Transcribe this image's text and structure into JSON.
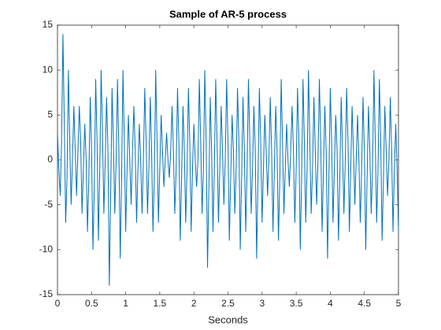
{
  "chart_data": {
    "type": "line",
    "title": "Sample of AR-5 process",
    "xlabel": "Seconds",
    "color": "#0072bd",
    "xlim": [
      0,
      5
    ],
    "ylim": [
      -15,
      15
    ],
    "xticks": [
      0,
      0.5,
      1,
      1.5,
      2,
      2.5,
      3,
      3.5,
      4,
      4.5,
      5
    ],
    "yticks": [
      -15,
      -10,
      -5,
      0,
      5,
      10,
      15
    ],
    "x": [
      0,
      0.02,
      0.04,
      0.06,
      0.08,
      0.1,
      0.12,
      0.14,
      0.16,
      0.18,
      0.2,
      0.22,
      0.24,
      0.26,
      0.28,
      0.3,
      0.32,
      0.34,
      0.36,
      0.38,
      0.4,
      0.42,
      0.44,
      0.46,
      0.48,
      0.5,
      0.52,
      0.54,
      0.56,
      0.58,
      0.6,
      0.62,
      0.64,
      0.66,
      0.68,
      0.7,
      0.72,
      0.74,
      0.76,
      0.78,
      0.8,
      0.82,
      0.84,
      0.86,
      0.88,
      0.9,
      0.92,
      0.94,
      0.96,
      0.98,
      1,
      1.02,
      1.04,
      1.06,
      1.08,
      1.1,
      1.12,
      1.14,
      1.16,
      1.18,
      1.2,
      1.22,
      1.24,
      1.26,
      1.28,
      1.3,
      1.32,
      1.34,
      1.36,
      1.38,
      1.4,
      1.42,
      1.44,
      1.46,
      1.48,
      1.5,
      1.52,
      1.54,
      1.56,
      1.58,
      1.6,
      1.62,
      1.64,
      1.66,
      1.68,
      1.7,
      1.72,
      1.74,
      1.76,
      1.78,
      1.8,
      1.82,
      1.84,
      1.86,
      1.88,
      1.9,
      1.92,
      1.94,
      1.96,
      1.98,
      2,
      2.02,
      2.04,
      2.06,
      2.08,
      2.1,
      2.12,
      2.14,
      2.16,
      2.18,
      2.2,
      2.22,
      2.24,
      2.26,
      2.28,
      2.3,
      2.32,
      2.34,
      2.36,
      2.38,
      2.4,
      2.42,
      2.44,
      2.46,
      2.48,
      2.5,
      2.52,
      2.54,
      2.56,
      2.58,
      2.6,
      2.62,
      2.64,
      2.66,
      2.68,
      2.7,
      2.72,
      2.74,
      2.76,
      2.78,
      2.8,
      2.82,
      2.84,
      2.86,
      2.88,
      2.9,
      2.92,
      2.94,
      2.96,
      2.98,
      3,
      3.02,
      3.04,
      3.06,
      3.08,
      3.1,
      3.12,
      3.14,
      3.16,
      3.18,
      3.2,
      3.22,
      3.24,
      3.26,
      3.28,
      3.3,
      3.32,
      3.34,
      3.36,
      3.38,
      3.4,
      3.42,
      3.44,
      3.46,
      3.48,
      3.5,
      3.52,
      3.54,
      3.56,
      3.58,
      3.6,
      3.62,
      3.64,
      3.66,
      3.68,
      3.7,
      3.72,
      3.74,
      3.76,
      3.78,
      3.8,
      3.82,
      3.84,
      3.86,
      3.88,
      3.9,
      3.92,
      3.94,
      3.96,
      3.98,
      4,
      4.02,
      4.04,
      4.06,
      4.08,
      4.1,
      4.12,
      4.14,
      4.16,
      4.18,
      4.2,
      4.22,
      4.24,
      4.26,
      4.28,
      4.3,
      4.32,
      4.34,
      4.36,
      4.38,
      4.4,
      4.42,
      4.44,
      4.46,
      4.48,
      4.5,
      4.52,
      4.54,
      4.56,
      4.58,
      4.6,
      4.62,
      4.64,
      4.66,
      4.68,
      4.7,
      4.72,
      4.74,
      4.76,
      4.78,
      4.8,
      4.82,
      4.84,
      4.86,
      4.88,
      4.9,
      4.92,
      4.94,
      4.96,
      4.98,
      5
    ],
    "values": [
      3,
      -1,
      -4,
      2,
      14,
      4,
      -7,
      -2,
      10,
      2,
      -5,
      0,
      6,
      1,
      -4,
      1,
      6,
      2,
      -6,
      -1,
      4,
      0,
      -8,
      -2,
      7,
      1,
      -10,
      -3,
      9,
      2,
      -9,
      -1,
      10,
      3,
      -6,
      0,
      7,
      1,
      -14,
      -4,
      8,
      2,
      -6,
      0,
      9,
      1,
      -11,
      -2,
      10,
      2,
      -8,
      -1,
      5,
      0,
      -5,
      1,
      6,
      1,
      -7,
      -1,
      4,
      0,
      -6,
      0,
      8,
      2,
      -6,
      -1,
      7,
      1,
      -8,
      -2,
      10,
      2,
      -7,
      -1,
      5,
      1,
      -3,
      0,
      3,
      0,
      -2,
      1,
      6,
      1,
      -6,
      -1,
      8,
      2,
      -9,
      -2,
      6,
      1,
      -7,
      -1,
      8,
      2,
      -8,
      -1,
      4,
      0,
      -3,
      0,
      9,
      2,
      -6,
      -1,
      10,
      2,
      -12,
      -3,
      7,
      1,
      -8,
      -1,
      9,
      2,
      -7,
      -1,
      6,
      1,
      -5,
      0,
      9,
      2,
      -9,
      -2,
      5,
      1,
      -6,
      -1,
      8,
      2,
      -10,
      -2,
      7,
      1,
      -8,
      -1,
      9,
      2,
      -6,
      -1,
      6,
      1,
      -11,
      -2,
      8,
      2,
      -7,
      -1,
      5,
      1,
      -4,
      0,
      7,
      1,
      -8,
      -1,
      6,
      1,
      -9,
      -2,
      9,
      2,
      -6,
      -1,
      4,
      0,
      -3,
      1,
      6,
      1,
      -7,
      -1,
      8,
      2,
      -10,
      -2,
      9,
      2,
      -7,
      -1,
      10,
      2,
      -6,
      -1,
      7,
      1,
      -5,
      0,
      9,
      2,
      -8,
      -1,
      6,
      1,
      -11,
      -2,
      8,
      2,
      -7,
      -1,
      5,
      1,
      -9,
      -2,
      7,
      1,
      -6,
      0,
      8,
      2,
      -8,
      -1,
      6,
      1,
      -5,
      0,
      5,
      0,
      -7,
      -1,
      7,
      1,
      -10,
      -2,
      6,
      1,
      -6,
      -1,
      10,
      2,
      -7,
      -1,
      9,
      2,
      -9,
      -2,
      6,
      1,
      -4,
      0,
      7,
      1,
      -8,
      -1,
      4,
      -1,
      -8
    ]
  }
}
